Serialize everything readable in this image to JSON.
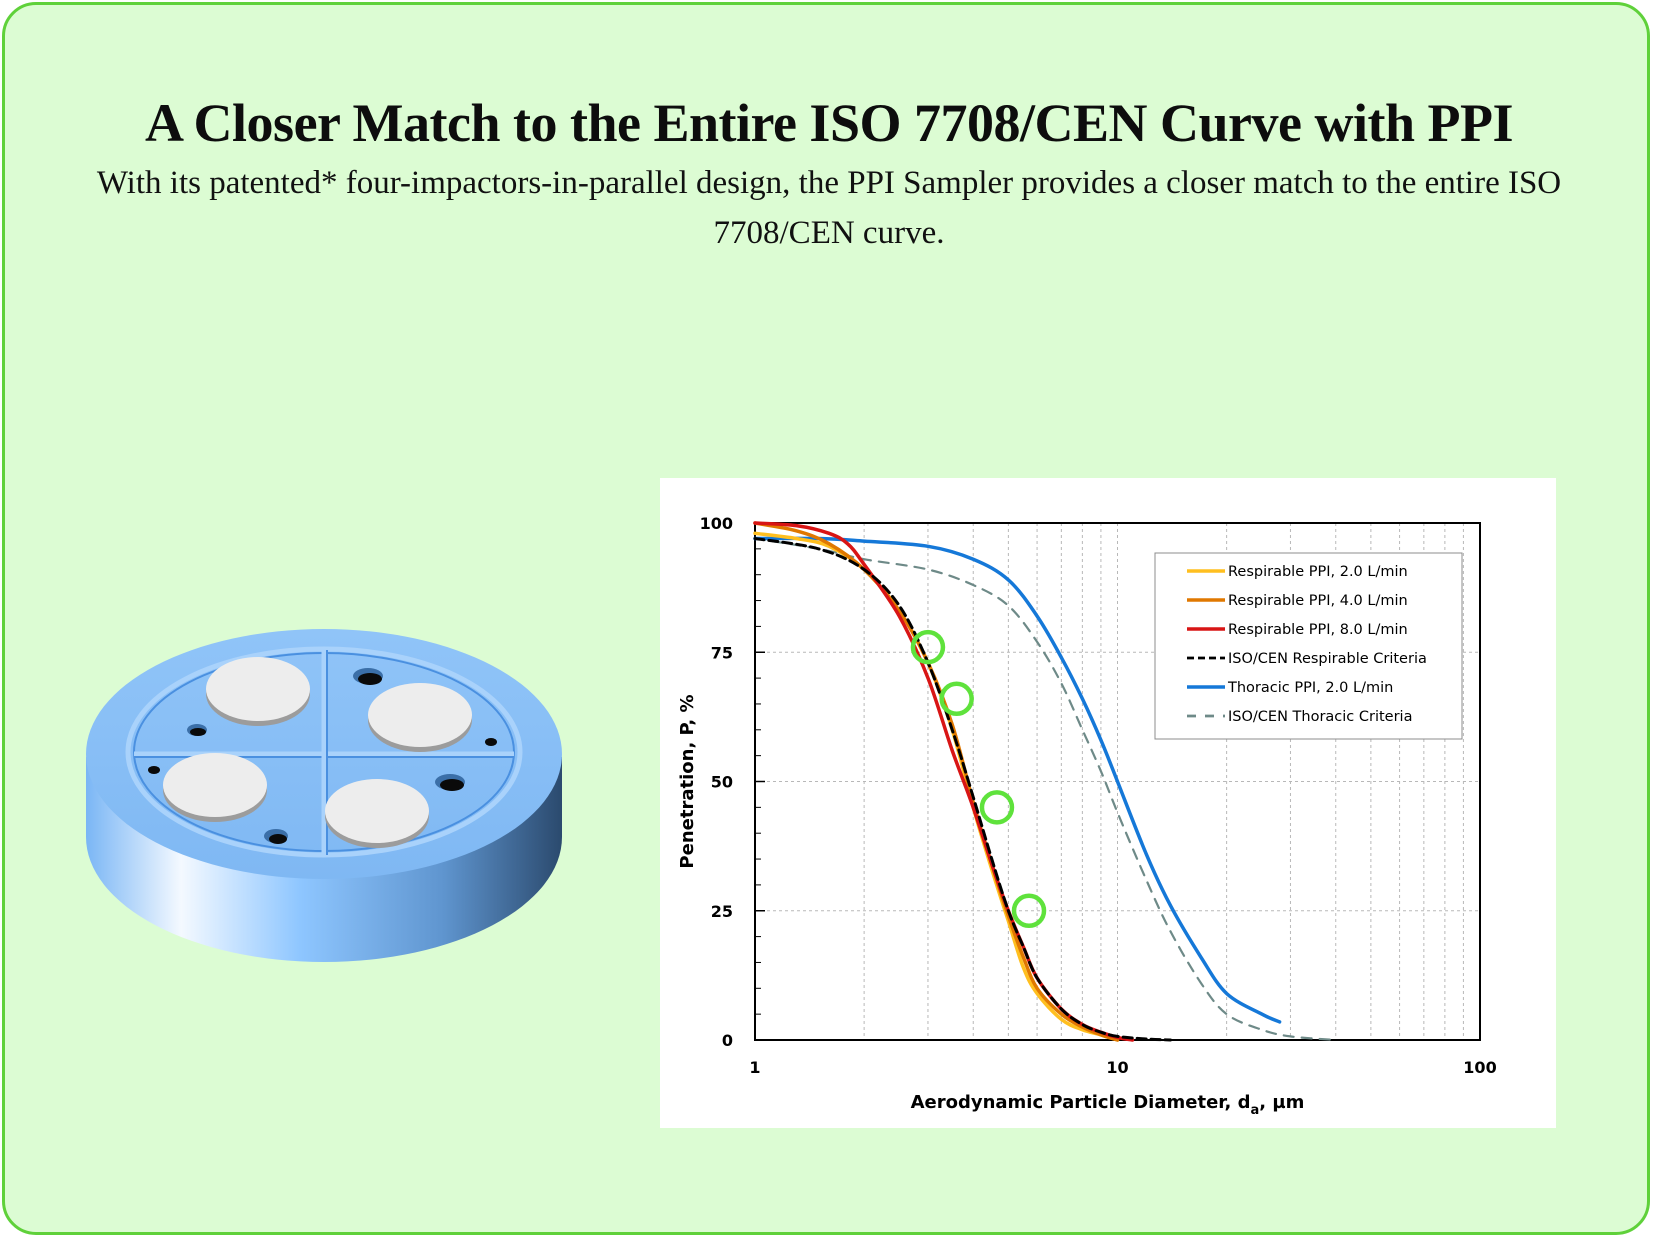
{
  "page": {
    "title": "A Closer Match to the Entire ISO 7708/CEN Curve with PPI",
    "subtitle": "With its patented* four-impactors-in-parallel design, the PPI Sampler provides a closer match to the entire ISO 7708/CEN curve."
  },
  "colors": {
    "background": "#dcfcd3",
    "border": "#5fd13a",
    "device_blue": "#86bdf7",
    "marker_green": "#5fe23c"
  },
  "chart_data": {
    "type": "line",
    "xlabel_main": "Aerodynamic Particle Diameter, d",
    "xlabel_sub": "a",
    "xlabel_unit": ", µm",
    "ylabel": "Penetration, P, %",
    "xscale": "log",
    "xlim": [
      1,
      100
    ],
    "ylim": [
      0,
      100
    ],
    "xticks": [
      1,
      10,
      100
    ],
    "xtick_labels": [
      "1",
      "10",
      "100"
    ],
    "yticks": [
      0,
      25,
      50,
      75,
      100
    ],
    "ytick_labels": [
      "0",
      "25",
      "50",
      "75",
      "100"
    ],
    "grid": true,
    "legend_position": "top-right",
    "series": [
      {
        "name": "Respirable PPI, 2.0 L/min",
        "color": "#ffbf1f",
        "dash": "solid",
        "x": [
          1.0,
          1.3,
          1.6,
          2.0,
          2.5,
          3.0,
          3.5,
          4.0,
          4.5,
          5.0,
          5.5,
          6.0,
          7.0,
          8.0,
          9.0,
          10.0
        ],
        "y": [
          98,
          97,
          95.5,
          91,
          83,
          73,
          60,
          45,
          33,
          23,
          14,
          9,
          4,
          2,
          1,
          0
        ]
      },
      {
        "name": "Respirable PPI, 4.0 L/min",
        "color": "#e07800",
        "dash": "solid",
        "x": [
          1.0,
          1.3,
          1.6,
          2.0,
          2.5,
          3.0,
          3.5,
          4.0,
          4.5,
          5.0,
          5.5,
          6.0,
          7.0,
          8.0,
          9.0,
          10.0
        ],
        "y": [
          100,
          98.5,
          96,
          91,
          83,
          73,
          61,
          46,
          34,
          24,
          16,
          10,
          5,
          2.5,
          1,
          0
        ]
      },
      {
        "name": "Respirable PPI, 8.0 L/min",
        "color": "#d81515",
        "dash": "solid",
        "x": [
          1.0,
          1.3,
          1.6,
          1.8,
          2.0,
          2.5,
          3.0,
          3.5,
          4.0,
          4.5,
          5.0,
          5.5,
          6.0,
          7.0,
          8.0,
          9.0,
          10.0,
          11.0
        ],
        "y": [
          100,
          99.5,
          98,
          96,
          92,
          82,
          70,
          56,
          45,
          34,
          25,
          18,
          12,
          6,
          3,
          1.5,
          0.5,
          0
        ]
      },
      {
        "name": "ISO/CEN Respirable Criteria",
        "color": "#000000",
        "dash": "dash",
        "x": [
          1.0,
          1.5,
          2.0,
          2.5,
          3.0,
          3.5,
          4.0,
          4.5,
          5.0,
          5.5,
          6.0,
          7.0,
          8.0,
          9.0,
          10.0,
          12.0,
          14.0
        ],
        "y": [
          97,
          95,
          91,
          84,
          73,
          60,
          47,
          35,
          25,
          18,
          12,
          6,
          3,
          1.5,
          0.7,
          0.2,
          0
        ]
      },
      {
        "name": "Thoracic PPI, 2.0 L/min",
        "color": "#1578d8",
        "dash": "solid",
        "x": [
          1.0,
          1.5,
          2.0,
          3.0,
          4.0,
          5.0,
          6.0,
          7.0,
          8.0,
          9.0,
          10.0,
          12.0,
          14.0,
          17.0,
          20.0,
          25.0,
          28.0
        ],
        "y": [
          97,
          97,
          96.5,
          95.5,
          93,
          89,
          82,
          74,
          66,
          58,
          50,
          36,
          26,
          16,
          9,
          5,
          3.5
        ]
      },
      {
        "name": "ISO/CEN Thoracic Criteria",
        "color": "#6e8a88",
        "dash": "longdash",
        "x": [
          1.0,
          1.5,
          2.0,
          3.0,
          4.0,
          5.0,
          6.0,
          7.0,
          8.0,
          9.0,
          10.0,
          12.0,
          14.0,
          17.0,
          20.0,
          25.0,
          30.0,
          40.0
        ],
        "y": [
          97,
          95,
          93,
          91,
          88,
          84,
          77,
          69,
          60,
          52,
          44,
          31,
          21,
          11,
          5,
          2,
          0.7,
          0
        ]
      }
    ],
    "highlight_markers": {
      "color": "#5fe23c",
      "points": [
        {
          "x": 3.0,
          "y": 76
        },
        {
          "x": 3.6,
          "y": 66
        },
        {
          "x": 4.65,
          "y": 45
        },
        {
          "x": 5.7,
          "y": 25
        }
      ]
    }
  }
}
